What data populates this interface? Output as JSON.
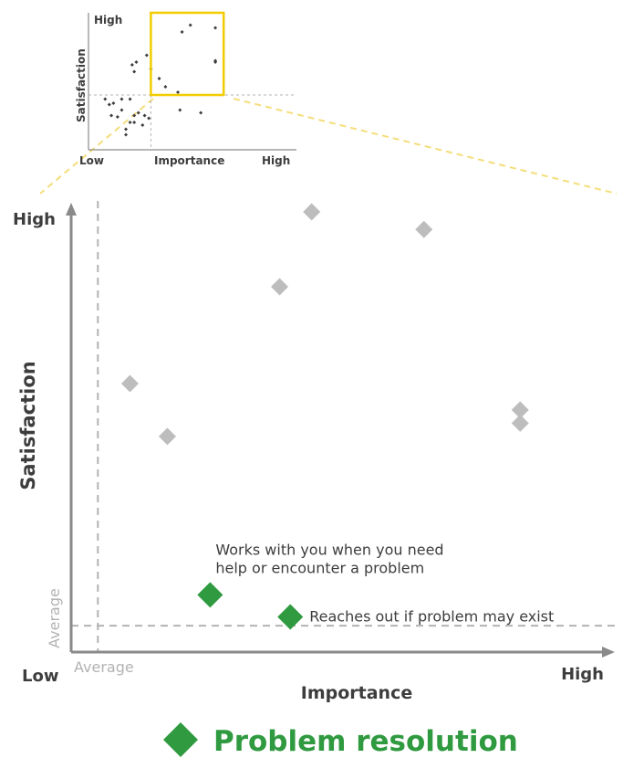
{
  "colors": {
    "axis": "#8a8a8a",
    "text_dark": "#3d3d3d",
    "point_gray": "#bdbdbd",
    "point_green": "#2f9a3f",
    "average_line": "#b3b3b3",
    "average_text": "#b3b3b3",
    "zoom_box": "#f2cc00",
    "zoom_connector": "#f5dd7a",
    "title_green": "#2f9a3f"
  },
  "chart_data": [
    {
      "type": "scatter",
      "role": "overview",
      "xlabel": "Importance",
      "ylabel": "Satisfaction",
      "x_low_label": "Low",
      "x_high_label": "High",
      "y_high_label": "High",
      "xlim": [
        0,
        100
      ],
      "ylim": [
        0,
        100
      ],
      "average_x": 30,
      "average_y": 40,
      "zoom_box": {
        "x": [
          30,
          65
        ],
        "y": [
          40,
          100
        ]
      },
      "points": [
        {
          "x": 45,
          "y": 86
        },
        {
          "x": 49,
          "y": 91
        },
        {
          "x": 61,
          "y": 89
        },
        {
          "x": 28,
          "y": 69
        },
        {
          "x": 21,
          "y": 62
        },
        {
          "x": 23,
          "y": 64
        },
        {
          "x": 22,
          "y": 57
        },
        {
          "x": 30,
          "y": 59
        },
        {
          "x": 34,
          "y": 52
        },
        {
          "x": 37,
          "y": 46
        },
        {
          "x": 43,
          "y": 42
        },
        {
          "x": 61,
          "y": 64
        },
        {
          "x": 61,
          "y": 65
        },
        {
          "x": 8,
          "y": 37
        },
        {
          "x": 10,
          "y": 33
        },
        {
          "x": 12,
          "y": 34
        },
        {
          "x": 16,
          "y": 37
        },
        {
          "x": 20,
          "y": 37
        },
        {
          "x": 16,
          "y": 29
        },
        {
          "x": 11,
          "y": 25
        },
        {
          "x": 14,
          "y": 24
        },
        {
          "x": 22,
          "y": 25
        },
        {
          "x": 24,
          "y": 27
        },
        {
          "x": 27,
          "y": 25
        },
        {
          "x": 29,
          "y": 23
        },
        {
          "x": 26,
          "y": 18
        },
        {
          "x": 18,
          "y": 15
        },
        {
          "x": 22,
          "y": 20
        },
        {
          "x": 18,
          "y": 11
        },
        {
          "x": 20,
          "y": 20
        },
        {
          "x": 44,
          "y": 29
        },
        {
          "x": 54,
          "y": 27
        }
      ]
    },
    {
      "type": "scatter",
      "role": "detail",
      "title": "Problem resolution",
      "xlabel": "Importance",
      "ylabel": "Satisfaction",
      "x_low_label": "Low",
      "x_high_label": "High",
      "y_high_label": "High",
      "average_label": "Average",
      "xlim": [
        0,
        100
      ],
      "ylim": [
        0,
        100
      ],
      "average_x": 5,
      "average_y": 6,
      "series": [
        {
          "color": "#bdbdbd",
          "points": [
            {
              "x": 45,
              "y": 100
            },
            {
              "x": 66,
              "y": 96
            },
            {
              "x": 39,
              "y": 83
            },
            {
              "x": 11,
              "y": 61
            },
            {
              "x": 18,
              "y": 49
            },
            {
              "x": 84,
              "y": 52
            },
            {
              "x": 84,
              "y": 55
            }
          ]
        },
        {
          "color": "#2f9a3f",
          "points": [
            {
              "x": 26,
              "y": 13,
              "label": "Works with you when you need help or encounter a problem",
              "label_lines": [
                "Works with you when you need",
                "help or encounter a problem"
              ],
              "label_pos": "above-right"
            },
            {
              "x": 41,
              "y": 8,
              "label": "Reaches out if problem may exist",
              "label_lines": [
                "Reaches out if problem may exist"
              ],
              "label_pos": "right"
            }
          ]
        }
      ]
    }
  ]
}
